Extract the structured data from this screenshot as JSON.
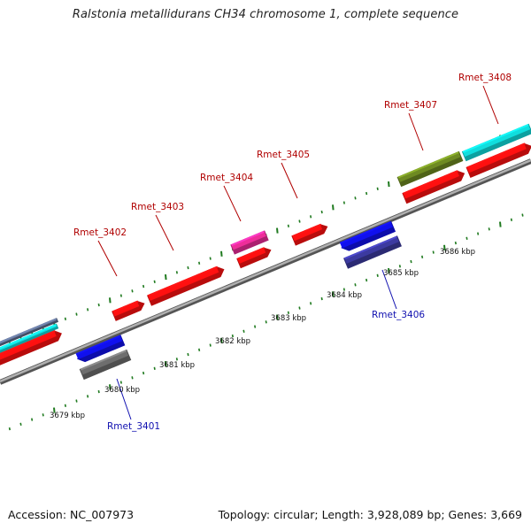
{
  "title": "Ralstonia metallidurans CH34 chromosome 1, complete sequence",
  "footer": {
    "accession": "Accession: NC_007973",
    "summary": "Topology: circular; Length: 3,928,089 bp; Genes: 3,669"
  },
  "colors": {
    "backbone": "#8a8a8a",
    "tick": "#1f7a1f",
    "forward_label": "#b00000",
    "reverse_label": "#1010b0",
    "red": "#ff1010",
    "blue": "#1010ee",
    "grey": "#6e6e6e",
    "navy": "#3c3aa0",
    "magenta": "#ee2d9a",
    "olive": "#6e8a22",
    "cyan": "#10dede",
    "slate": "#5a6a8a"
  },
  "scale": {
    "labels": [
      "3679 kbp",
      "3680 kbp",
      "3681 kbp",
      "3682 kbp",
      "3683 kbp",
      "3684 kbp",
      "3685 kbp",
      "3686 kbp"
    ]
  },
  "gene_labels": [
    {
      "name": "Rmet_3401",
      "strand": "reverse"
    },
    {
      "name": "Rmet_3402",
      "strand": "forward"
    },
    {
      "name": "Rmet_3403",
      "strand": "forward"
    },
    {
      "name": "Rmet_3404",
      "strand": "forward"
    },
    {
      "name": "Rmet_3405",
      "strand": "forward"
    },
    {
      "name": "Rmet_3406",
      "strand": "reverse"
    },
    {
      "name": "Rmet_3407",
      "strand": "forward"
    },
    {
      "name": "Rmet_3408",
      "strand": "forward"
    }
  ]
}
